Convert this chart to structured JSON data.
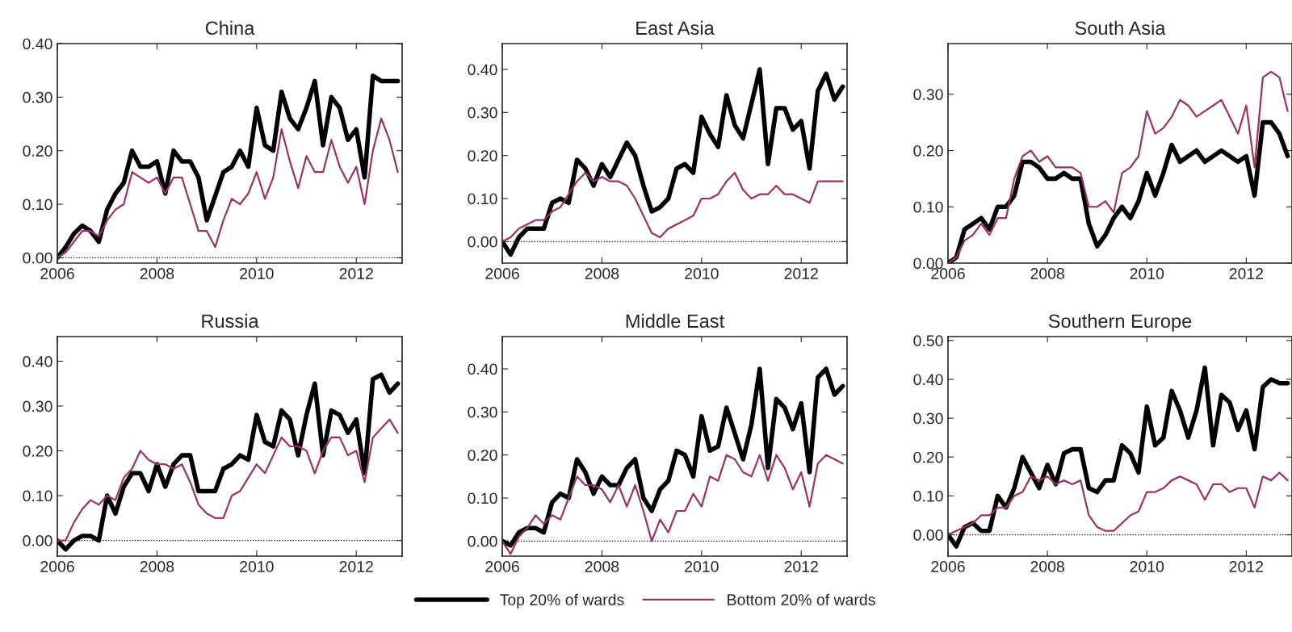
{
  "chart_data": [
    {
      "type": "line",
      "title": "China",
      "legend": "bottom",
      "xlim": [
        2006,
        2012.92
      ],
      "xticks": [
        2006,
        2008,
        2010,
        2012
      ],
      "ylim": [
        -0.01,
        0.4
      ],
      "yticks": [
        {
          "value": 0,
          "label": "0.00"
        },
        {
          "value": 0.1,
          "label": "0.10"
        },
        {
          "value": 0.2,
          "label": "0.20"
        },
        {
          "value": 0.3,
          "label": "0.30"
        },
        {
          "value": 0.4,
          "label": "0.40"
        }
      ],
      "ref_lines": [
        {
          "axis": "y",
          "value": 0,
          "line_style": "dotted",
          "color": "#000000"
        }
      ],
      "x": [
        2006.0,
        2006.167,
        2006.333,
        2006.5,
        2006.667,
        2006.833,
        2007.0,
        2007.167,
        2007.333,
        2007.5,
        2007.667,
        2007.833,
        2008.0,
        2008.167,
        2008.333,
        2008.5,
        2008.667,
        2008.833,
        2009.0,
        2009.167,
        2009.333,
        2009.5,
        2009.667,
        2009.833,
        2010.0,
        2010.167,
        2010.333,
        2010.5,
        2010.667,
        2010.833,
        2011.0,
        2011.167,
        2011.333,
        2011.5,
        2011.667,
        2011.833,
        2012.0,
        2012.167,
        2012.333,
        2012.5,
        2012.667,
        2012.833
      ],
      "series": [
        {
          "name": "Top 20% of wards",
          "color": "#000000",
          "values": [
            0.0,
            0.02,
            0.045,
            0.06,
            0.05,
            0.03,
            0.09,
            0.12,
            0.14,
            0.2,
            0.17,
            0.17,
            0.18,
            0.12,
            0.2,
            0.18,
            0.18,
            0.15,
            0.07,
            0.115,
            0.16,
            0.17,
            0.2,
            0.17,
            0.28,
            0.21,
            0.2,
            0.31,
            0.26,
            0.24,
            0.28,
            0.33,
            0.21,
            0.3,
            0.28,
            0.22,
            0.24,
            0.15,
            0.34,
            0.33,
            0.33,
            0.33
          ]
        },
        {
          "name": "Bottom 20% of wards",
          "color": "#993366",
          "values": [
            0.0,
            0.01,
            0.03,
            0.05,
            0.05,
            0.04,
            0.07,
            0.09,
            0.1,
            0.16,
            0.15,
            0.14,
            0.15,
            0.12,
            0.15,
            0.15,
            0.1,
            0.05,
            0.05,
            0.02,
            0.07,
            0.11,
            0.1,
            0.12,
            0.16,
            0.11,
            0.15,
            0.24,
            0.18,
            0.13,
            0.19,
            0.16,
            0.16,
            0.22,
            0.17,
            0.14,
            0.17,
            0.1,
            0.2,
            0.26,
            0.22,
            0.16
          ]
        }
      ]
    },
    {
      "type": "line",
      "title": "East Asia",
      "xlim": [
        2006,
        2012.92
      ],
      "xticks": [
        2006,
        2008,
        2010,
        2012
      ],
      "ylim": [
        -0.05,
        0.46
      ],
      "yticks": [
        {
          "value": 0,
          "label": "0.00"
        },
        {
          "value": 0.1,
          "label": "0.10"
        },
        {
          "value": 0.2,
          "label": "0.20"
        },
        {
          "value": 0.3,
          "label": "0.30"
        },
        {
          "value": 0.4,
          "label": "0.40"
        }
      ],
      "ref_lines": [
        {
          "axis": "y",
          "value": 0,
          "line_style": "dotted",
          "color": "#000000"
        }
      ],
      "x": [
        2006.0,
        2006.167,
        2006.333,
        2006.5,
        2006.667,
        2006.833,
        2007.0,
        2007.167,
        2007.333,
        2007.5,
        2007.667,
        2007.833,
        2008.0,
        2008.167,
        2008.333,
        2008.5,
        2008.667,
        2008.833,
        2009.0,
        2009.167,
        2009.333,
        2009.5,
        2009.667,
        2009.833,
        2010.0,
        2010.167,
        2010.333,
        2010.5,
        2010.667,
        2010.833,
        2011.0,
        2011.167,
        2011.333,
        2011.5,
        2011.667,
        2011.833,
        2012.0,
        2012.167,
        2012.333,
        2012.5,
        2012.667,
        2012.833
      ],
      "series": [
        {
          "color": "#000000",
          "values": [
            0.0,
            -0.03,
            0.01,
            0.03,
            0.03,
            0.03,
            0.09,
            0.1,
            0.09,
            0.19,
            0.17,
            0.13,
            0.18,
            0.15,
            0.19,
            0.23,
            0.2,
            0.13,
            0.07,
            0.08,
            0.1,
            0.17,
            0.18,
            0.16,
            0.29,
            0.25,
            0.22,
            0.34,
            0.27,
            0.24,
            0.32,
            0.4,
            0.18,
            0.31,
            0.31,
            0.26,
            0.28,
            0.17,
            0.35,
            0.39,
            0.33,
            0.36
          ]
        },
        {
          "color": "#993366",
          "values": [
            0.0,
            0.01,
            0.03,
            0.04,
            0.05,
            0.05,
            0.07,
            0.08,
            0.11,
            0.14,
            0.16,
            0.14,
            0.15,
            0.14,
            0.14,
            0.13,
            0.1,
            0.06,
            0.02,
            0.01,
            0.03,
            0.04,
            0.05,
            0.06,
            0.1,
            0.1,
            0.11,
            0.14,
            0.16,
            0.12,
            0.1,
            0.11,
            0.11,
            0.13,
            0.11,
            0.11,
            0.1,
            0.09,
            0.14,
            0.14,
            0.14,
            0.14
          ]
        }
      ]
    },
    {
      "type": "line",
      "title": "South Asia",
      "xlim": [
        2006,
        2012.92
      ],
      "xticks": [
        2006,
        2008,
        2010,
        2012
      ],
      "ylim": [
        0,
        0.39
      ],
      "yticks": [
        {
          "value": 0,
          "label": "0.00"
        },
        {
          "value": 0.1,
          "label": "0.10"
        },
        {
          "value": 0.2,
          "label": "0.20"
        },
        {
          "value": 0.3,
          "label": "0.30"
        }
      ],
      "ref_lines": [
        {
          "axis": "y",
          "value": 0,
          "line_style": "dotted",
          "color": "#000000"
        }
      ],
      "x": [
        2006.0,
        2006.167,
        2006.333,
        2006.5,
        2006.667,
        2006.833,
        2007.0,
        2007.167,
        2007.333,
        2007.5,
        2007.667,
        2007.833,
        2008.0,
        2008.167,
        2008.333,
        2008.5,
        2008.667,
        2008.833,
        2009.0,
        2009.167,
        2009.333,
        2009.5,
        2009.667,
        2009.833,
        2010.0,
        2010.167,
        2010.333,
        2010.5,
        2010.667,
        2010.833,
        2011.0,
        2011.167,
        2011.333,
        2011.5,
        2011.667,
        2011.833,
        2012.0,
        2012.167,
        2012.333,
        2012.5,
        2012.667,
        2012.833
      ],
      "series": [
        {
          "color": "#000000",
          "values": [
            0.0,
            0.01,
            0.06,
            0.07,
            0.08,
            0.06,
            0.1,
            0.1,
            0.12,
            0.18,
            0.18,
            0.17,
            0.15,
            0.15,
            0.16,
            0.15,
            0.15,
            0.07,
            0.03,
            0.05,
            0.08,
            0.1,
            0.08,
            0.11,
            0.16,
            0.12,
            0.16,
            0.21,
            0.18,
            0.19,
            0.2,
            0.18,
            0.19,
            0.2,
            0.19,
            0.18,
            0.19,
            0.12,
            0.25,
            0.25,
            0.23,
            0.19
          ]
        },
        {
          "color": "#993366",
          "values": [
            0.0,
            0.01,
            0.04,
            0.05,
            0.07,
            0.05,
            0.08,
            0.08,
            0.15,
            0.19,
            0.2,
            0.18,
            0.19,
            0.17,
            0.17,
            0.17,
            0.16,
            0.1,
            0.1,
            0.11,
            0.09,
            0.16,
            0.17,
            0.19,
            0.27,
            0.23,
            0.24,
            0.26,
            0.29,
            0.28,
            0.26,
            0.27,
            0.28,
            0.29,
            0.26,
            0.23,
            0.28,
            0.17,
            0.33,
            0.34,
            0.33,
            0.27
          ]
        }
      ]
    },
    {
      "type": "line",
      "title": "Russia",
      "xlim": [
        2006,
        2012.92
      ],
      "xticks": [
        2006,
        2008,
        2010,
        2012
      ],
      "ylim": [
        -0.035,
        0.455
      ],
      "yticks": [
        {
          "value": 0,
          "label": "0.00"
        },
        {
          "value": 0.1,
          "label": "0.10"
        },
        {
          "value": 0.2,
          "label": "0.20"
        },
        {
          "value": 0.3,
          "label": "0.30"
        },
        {
          "value": 0.4,
          "label": "0.40"
        }
      ],
      "ref_lines": [
        {
          "axis": "y",
          "value": 0,
          "line_style": "dotted",
          "color": "#000000"
        }
      ],
      "x": [
        2006.0,
        2006.167,
        2006.333,
        2006.5,
        2006.667,
        2006.833,
        2007.0,
        2007.167,
        2007.333,
        2007.5,
        2007.667,
        2007.833,
        2008.0,
        2008.167,
        2008.333,
        2008.5,
        2008.667,
        2008.833,
        2009.0,
        2009.167,
        2009.333,
        2009.5,
        2009.667,
        2009.833,
        2010.0,
        2010.167,
        2010.333,
        2010.5,
        2010.667,
        2010.833,
        2011.0,
        2011.167,
        2011.333,
        2011.5,
        2011.667,
        2011.833,
        2012.0,
        2012.167,
        2012.333,
        2012.5,
        2012.667,
        2012.833
      ],
      "series": [
        {
          "color": "#000000",
          "values": [
            0.0,
            -0.02,
            0.0,
            0.01,
            0.01,
            0.0,
            0.1,
            0.06,
            0.12,
            0.15,
            0.15,
            0.11,
            0.17,
            0.12,
            0.17,
            0.19,
            0.19,
            0.11,
            0.11,
            0.11,
            0.16,
            0.17,
            0.19,
            0.18,
            0.28,
            0.22,
            0.21,
            0.29,
            0.27,
            0.19,
            0.28,
            0.35,
            0.19,
            0.29,
            0.28,
            0.24,
            0.27,
            0.15,
            0.36,
            0.37,
            0.33,
            0.35
          ]
        },
        {
          "color": "#993366",
          "values": [
            0.0,
            0.0,
            0.04,
            0.07,
            0.09,
            0.08,
            0.1,
            0.09,
            0.14,
            0.16,
            0.2,
            0.18,
            0.17,
            0.17,
            0.16,
            0.17,
            0.13,
            0.08,
            0.06,
            0.05,
            0.05,
            0.1,
            0.11,
            0.14,
            0.17,
            0.15,
            0.19,
            0.23,
            0.21,
            0.21,
            0.2,
            0.15,
            0.2,
            0.23,
            0.23,
            0.19,
            0.2,
            0.13,
            0.23,
            0.25,
            0.27,
            0.24
          ]
        }
      ]
    },
    {
      "type": "line",
      "title": "Middle East",
      "xlim": [
        2006,
        2012.92
      ],
      "xticks": [
        2006,
        2008,
        2010,
        2012
      ],
      "ylim": [
        -0.035,
        0.475
      ],
      "yticks": [
        {
          "value": 0,
          "label": "0.00"
        },
        {
          "value": 0.1,
          "label": "0.10"
        },
        {
          "value": 0.2,
          "label": "0.20"
        },
        {
          "value": 0.3,
          "label": "0.30"
        },
        {
          "value": 0.4,
          "label": "0.40"
        }
      ],
      "ref_lines": [
        {
          "axis": "y",
          "value": 0,
          "line_style": "dotted",
          "color": "#000000"
        }
      ],
      "x": [
        2006.0,
        2006.167,
        2006.333,
        2006.5,
        2006.667,
        2006.833,
        2007.0,
        2007.167,
        2007.333,
        2007.5,
        2007.667,
        2007.833,
        2008.0,
        2008.167,
        2008.333,
        2008.5,
        2008.667,
        2008.833,
        2009.0,
        2009.167,
        2009.333,
        2009.5,
        2009.667,
        2009.833,
        2010.0,
        2010.167,
        2010.333,
        2010.5,
        2010.667,
        2010.833,
        2011.0,
        2011.167,
        2011.333,
        2011.5,
        2011.667,
        2011.833,
        2012.0,
        2012.167,
        2012.333,
        2012.5,
        2012.667,
        2012.833
      ],
      "series": [
        {
          "color": "#000000",
          "values": [
            0.0,
            -0.01,
            0.02,
            0.03,
            0.03,
            0.02,
            0.09,
            0.11,
            0.1,
            0.19,
            0.16,
            0.11,
            0.15,
            0.13,
            0.13,
            0.17,
            0.19,
            0.1,
            0.07,
            0.12,
            0.14,
            0.21,
            0.2,
            0.15,
            0.29,
            0.21,
            0.22,
            0.31,
            0.25,
            0.19,
            0.27,
            0.4,
            0.17,
            0.33,
            0.31,
            0.26,
            0.32,
            0.16,
            0.38,
            0.4,
            0.34,
            0.36
          ]
        },
        {
          "color": "#993366",
          "values": [
            0.0,
            -0.03,
            0.01,
            0.03,
            0.06,
            0.04,
            0.06,
            0.05,
            0.1,
            0.15,
            0.13,
            0.13,
            0.12,
            0.09,
            0.13,
            0.08,
            0.13,
            0.07,
            0.0,
            0.05,
            0.02,
            0.07,
            0.07,
            0.11,
            0.08,
            0.15,
            0.14,
            0.2,
            0.19,
            0.16,
            0.15,
            0.2,
            0.14,
            0.2,
            0.17,
            0.12,
            0.16,
            0.08,
            0.18,
            0.2,
            0.19,
            0.18
          ]
        }
      ]
    },
    {
      "type": "line",
      "title": "Southern Europe",
      "xlim": [
        2006,
        2012.92
      ],
      "xticks": [
        2006,
        2008,
        2010,
        2012
      ],
      "ylim": [
        -0.055,
        0.51
      ],
      "yticks": [
        {
          "value": 0,
          "label": "0.00"
        },
        {
          "value": 0.1,
          "label": "0.10"
        },
        {
          "value": 0.2,
          "label": "0.20"
        },
        {
          "value": 0.3,
          "label": "0.30"
        },
        {
          "value": 0.4,
          "label": "0.40"
        },
        {
          "value": 0.5,
          "label": "0.50"
        }
      ],
      "ref_lines": [
        {
          "axis": "y",
          "value": 0,
          "line_style": "dotted",
          "color": "#000000"
        }
      ],
      "x": [
        2006.0,
        2006.167,
        2006.333,
        2006.5,
        2006.667,
        2006.833,
        2007.0,
        2007.167,
        2007.333,
        2007.5,
        2007.667,
        2007.833,
        2008.0,
        2008.167,
        2008.333,
        2008.5,
        2008.667,
        2008.833,
        2009.0,
        2009.167,
        2009.333,
        2009.5,
        2009.667,
        2009.833,
        2010.0,
        2010.167,
        2010.333,
        2010.5,
        2010.667,
        2010.833,
        2011.0,
        2011.167,
        2011.333,
        2011.5,
        2011.667,
        2011.833,
        2012.0,
        2012.167,
        2012.333,
        2012.5,
        2012.667,
        2012.833
      ],
      "series": [
        {
          "color": "#000000",
          "values": [
            0.0,
            -0.03,
            0.02,
            0.03,
            0.01,
            0.01,
            0.1,
            0.07,
            0.12,
            0.2,
            0.16,
            0.12,
            0.18,
            0.13,
            0.21,
            0.22,
            0.22,
            0.12,
            0.11,
            0.14,
            0.14,
            0.23,
            0.21,
            0.16,
            0.33,
            0.23,
            0.25,
            0.37,
            0.32,
            0.25,
            0.32,
            0.43,
            0.23,
            0.36,
            0.34,
            0.27,
            0.32,
            0.22,
            0.38,
            0.4,
            0.39,
            0.39
          ]
        },
        {
          "color": "#993366",
          "values": [
            0.0,
            0.01,
            0.02,
            0.03,
            0.05,
            0.05,
            0.07,
            0.07,
            0.1,
            0.11,
            0.15,
            0.14,
            0.15,
            0.13,
            0.14,
            0.13,
            0.14,
            0.05,
            0.02,
            0.01,
            0.01,
            0.03,
            0.05,
            0.06,
            0.11,
            0.11,
            0.12,
            0.14,
            0.15,
            0.14,
            0.13,
            0.09,
            0.13,
            0.13,
            0.11,
            0.12,
            0.12,
            0.07,
            0.15,
            0.14,
            0.16,
            0.14
          ]
        }
      ]
    }
  ]
}
